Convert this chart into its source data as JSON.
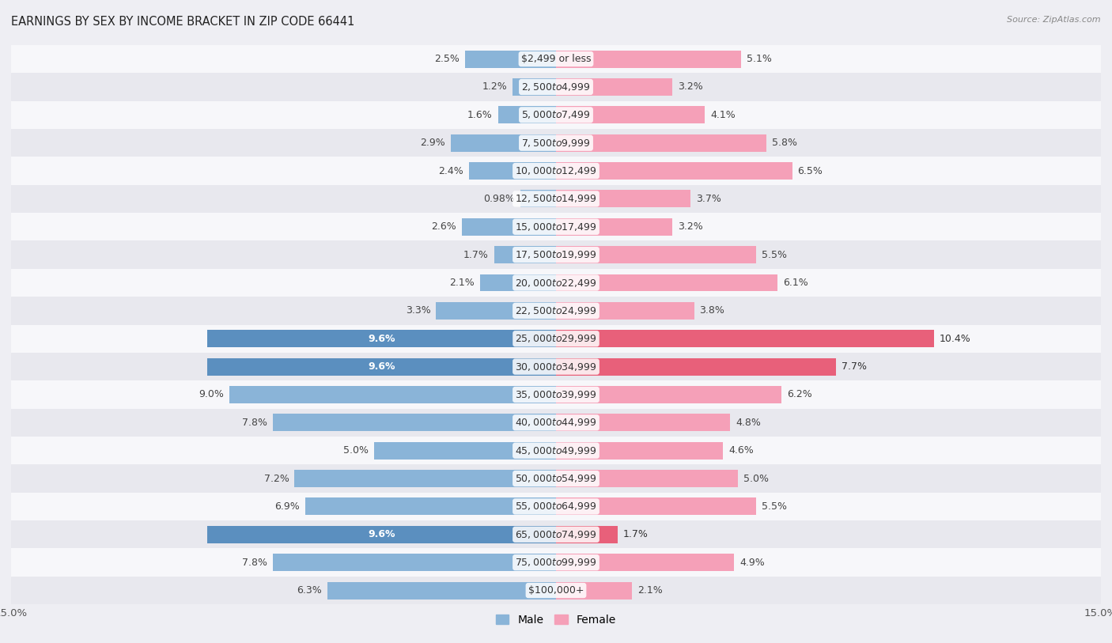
{
  "title": "EARNINGS BY SEX BY INCOME BRACKET IN ZIP CODE 66441",
  "source": "Source: ZipAtlas.com",
  "categories": [
    "$2,499 or less",
    "$2,500 to $4,999",
    "$5,000 to $7,499",
    "$7,500 to $9,999",
    "$10,000 to $12,499",
    "$12,500 to $14,999",
    "$15,000 to $17,499",
    "$17,500 to $19,999",
    "$20,000 to $22,499",
    "$22,500 to $24,999",
    "$25,000 to $29,999",
    "$30,000 to $34,999",
    "$35,000 to $39,999",
    "$40,000 to $44,999",
    "$45,000 to $49,999",
    "$50,000 to $54,999",
    "$55,000 to $64,999",
    "$65,000 to $74,999",
    "$75,000 to $99,999",
    "$100,000+"
  ],
  "male_values": [
    2.5,
    1.2,
    1.6,
    2.9,
    2.4,
    0.98,
    2.6,
    1.7,
    2.1,
    3.3,
    9.6,
    9.6,
    9.0,
    7.8,
    5.0,
    7.2,
    6.9,
    9.6,
    7.8,
    6.3
  ],
  "female_values": [
    5.1,
    3.2,
    4.1,
    5.8,
    6.5,
    3.7,
    3.2,
    5.5,
    6.1,
    3.8,
    10.4,
    7.7,
    6.2,
    4.8,
    4.6,
    5.0,
    5.5,
    1.7,
    4.9,
    2.1
  ],
  "male_color": "#8ab4d8",
  "female_color": "#f5a0b8",
  "male_highlight_color": "#5b8fbf",
  "female_highlight_color": "#e8607a",
  "highlight_rows": [
    10,
    11,
    17
  ],
  "xlim": 15.0,
  "bg_color": "#eeeef3",
  "row_bg_even": "#f7f7fa",
  "row_bg_odd": "#e8e8ee",
  "label_fontsize": 9.0,
  "title_fontsize": 10.5,
  "axis_label_fontsize": 9.5
}
